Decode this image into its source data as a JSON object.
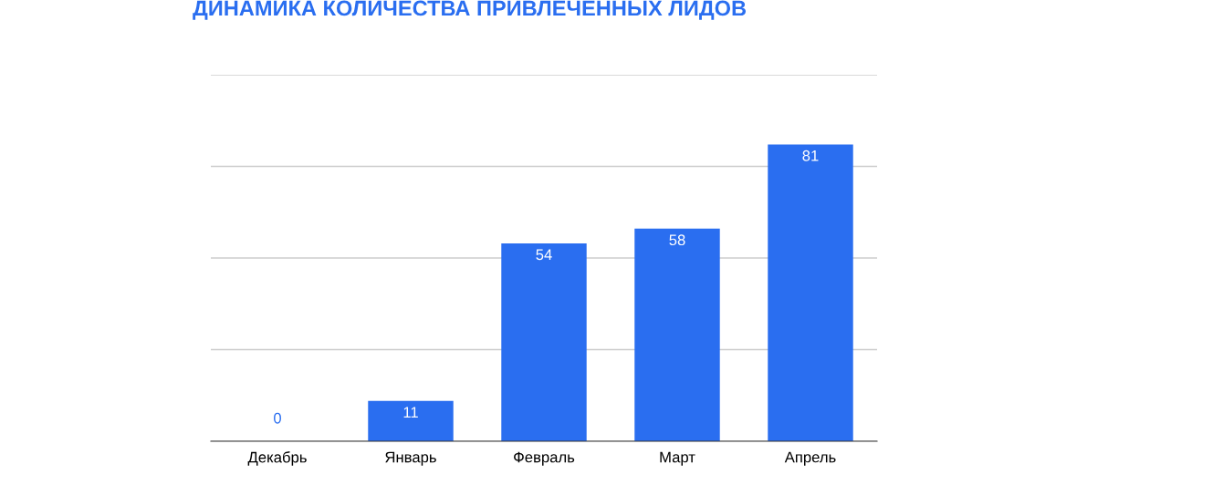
{
  "chart_data": {
    "type": "bar",
    "title": "ДИНАМИКА КОЛИЧЕСТВА ПРИВЛЕЧЕННЫХ ЛИДОВ",
    "categories": [
      "Декабрь",
      "Январь",
      "Февраль",
      "Март",
      "Апрель"
    ],
    "values": [
      0,
      11,
      54,
      58,
      81
    ],
    "color": "#2a6ef0",
    "ylim": [
      0,
      100
    ],
    "yticks": [
      {
        "value": 0,
        "label": null
      },
      {
        "value": 25,
        "label": null
      },
      {
        "value": 50,
        "label": null
      },
      {
        "value": 75,
        "label": null
      },
      {
        "value": 100,
        "label": null
      }
    ],
    "tick_labels": "x",
    "grid": "y",
    "data_labels": true
  }
}
